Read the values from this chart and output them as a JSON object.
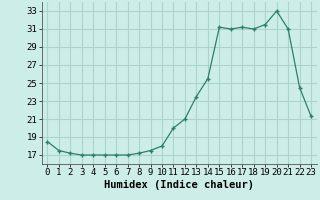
{
  "x": [
    0,
    1,
    2,
    3,
    4,
    5,
    6,
    7,
    8,
    9,
    10,
    11,
    12,
    13,
    14,
    15,
    16,
    17,
    18,
    19,
    20,
    21,
    22,
    23
  ],
  "y": [
    18.5,
    17.5,
    17.2,
    17.0,
    17.0,
    17.0,
    17.0,
    17.0,
    17.2,
    17.5,
    18.0,
    20.0,
    21.0,
    23.5,
    25.5,
    31.2,
    31.0,
    31.2,
    31.0,
    31.5,
    33.0,
    31.0,
    24.5,
    21.3
  ],
  "xlabel": "Humidex (Indice chaleur)",
  "xlim": [
    -0.5,
    23.5
  ],
  "ylim": [
    16.0,
    34.0
  ],
  "yticks": [
    17,
    19,
    21,
    23,
    25,
    27,
    29,
    31,
    33
  ],
  "xticks": [
    0,
    1,
    2,
    3,
    4,
    5,
    6,
    7,
    8,
    9,
    10,
    11,
    12,
    13,
    14,
    15,
    16,
    17,
    18,
    19,
    20,
    21,
    22,
    23
  ],
  "line_color": "#2e7d6e",
  "marker": "+",
  "bg_color": "#cdeee8",
  "grid_color": "#aad4cc",
  "xlabel_fontsize": 7.5,
  "tick_fontsize": 6.5
}
